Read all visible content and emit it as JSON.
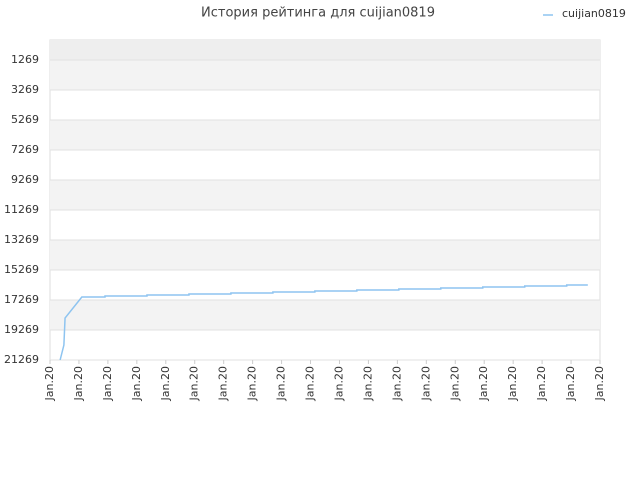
{
  "chart_data": {
    "type": "line",
    "title": "История рейтинга для cuijian0819",
    "series": [
      {
        "name": "cuijian0819",
        "color": "#8ec4f0",
        "x": [
          0.35,
          0.48,
          0.52,
          1.1,
          1.9,
          1.9,
          3.35,
          3.35,
          4.8,
          4.8,
          6.25,
          6.25,
          7.7,
          7.7,
          9.15,
          9.15,
          10.6,
          10.6,
          12.05,
          12.05,
          13.5,
          13.5,
          14.95,
          14.95,
          16.4,
          16.4,
          17.85,
          17.85,
          18.58
        ],
        "values": [
          21269,
          20269,
          18469,
          17069,
          17069,
          17003,
          17003,
          16936,
          16936,
          16869,
          16869,
          16803,
          16803,
          16736,
          16736,
          16669,
          16669,
          16603,
          16603,
          16536,
          16536,
          16469,
          16469,
          16403,
          16403,
          16336,
          16336,
          16269,
          16269
        ]
      }
    ],
    "xlim": [
      0,
      19
    ],
    "xticks": [
      {
        "value": 0,
        "label": "Jan.20"
      },
      {
        "value": 1,
        "label": "Jan.20"
      },
      {
        "value": 2,
        "label": "Jan.20"
      },
      {
        "value": 3,
        "label": "Jan.20"
      },
      {
        "value": 4,
        "label": "Jan.20"
      },
      {
        "value": 5,
        "label": "Jan.20"
      },
      {
        "value": 6,
        "label": "Jan.20"
      },
      {
        "value": 7,
        "label": "Jan.20"
      },
      {
        "value": 8,
        "label": "Jan.20"
      },
      {
        "value": 9,
        "label": "Jan.20"
      },
      {
        "value": 10,
        "label": "Jan.20"
      },
      {
        "value": 11,
        "label": "Jan.20"
      },
      {
        "value": 12,
        "label": "Jan.20"
      },
      {
        "value": 13,
        "label": "Jan.20"
      },
      {
        "value": 14,
        "label": "Jan.20"
      },
      {
        "value": 15,
        "label": "Jan.20"
      },
      {
        "value": 16,
        "label": "Jan.20"
      },
      {
        "value": 17,
        "label": "Jan.20"
      },
      {
        "value": 18,
        "label": "Jan.20"
      },
      {
        "value": 19,
        "label": "Jan.20"
      }
    ],
    "ylim": [
      21269,
      -64
    ],
    "yticks": [
      1269,
      3269,
      5269,
      7269,
      9269,
      11269,
      13269,
      15269,
      17269,
      19269,
      21269
    ],
    "grid": true,
    "legend": "top-right"
  }
}
